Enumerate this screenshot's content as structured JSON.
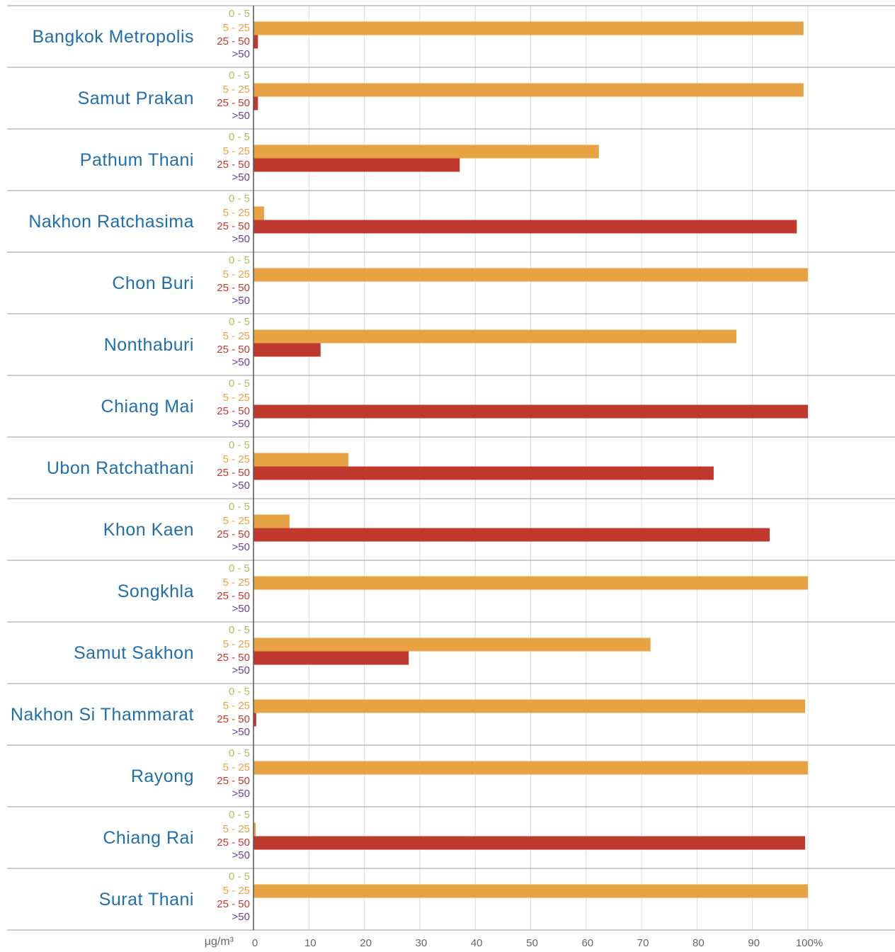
{
  "chart_data": {
    "type": "bar",
    "orientation": "horizontal",
    "x_label": "μg/m³",
    "categories": [
      "Bangkok Metropolis",
      "Samut Prakan",
      "Pathum Thani",
      "Nakhon Ratchasima",
      "Chon Buri",
      "Nonthaburi",
      "Chiang Mai",
      "Ubon Ratchathani",
      "Khon Kaen",
      "Songkhla",
      "Samut Sakhon",
      "Nakhon Si Thammarat",
      "Rayong",
      "Chiang Rai",
      "Surat Thani"
    ],
    "series": [
      {
        "name": "0 - 5",
        "color": "#a9c25b",
        "values": [
          0,
          0,
          0,
          0,
          0,
          0,
          0,
          0,
          0,
          0,
          0,
          0,
          0,
          0,
          0
        ]
      },
      {
        "name": "5 - 25",
        "color": "#e6a243",
        "values": [
          99.2,
          99.2,
          62.3,
          1.9,
          100,
          87.1,
          0,
          17.1,
          6.5,
          100,
          71.6,
          99.5,
          100,
          0.4,
          100
        ]
      },
      {
        "name": "25 - 50",
        "color": "#c0392e",
        "values": [
          0.8,
          0.8,
          37.2,
          98.0,
          0,
          12.1,
          100,
          83.0,
          93.1,
          0,
          28.0,
          0.5,
          0,
          99.5,
          0
        ]
      },
      {
        "name": ">50",
        "color": "#6a3f98",
        "values": [
          0,
          0,
          0,
          0,
          0,
          0,
          0,
          0,
          0,
          0,
          0,
          0,
          0,
          0,
          0
        ]
      }
    ],
    "xlim": [
      0,
      115
    ],
    "xticks": [
      0,
      10,
      20,
      30,
      40,
      50,
      60,
      70,
      80,
      90,
      {
        "value": 100,
        "label": "100%"
      }
    ],
    "grid": true
  }
}
